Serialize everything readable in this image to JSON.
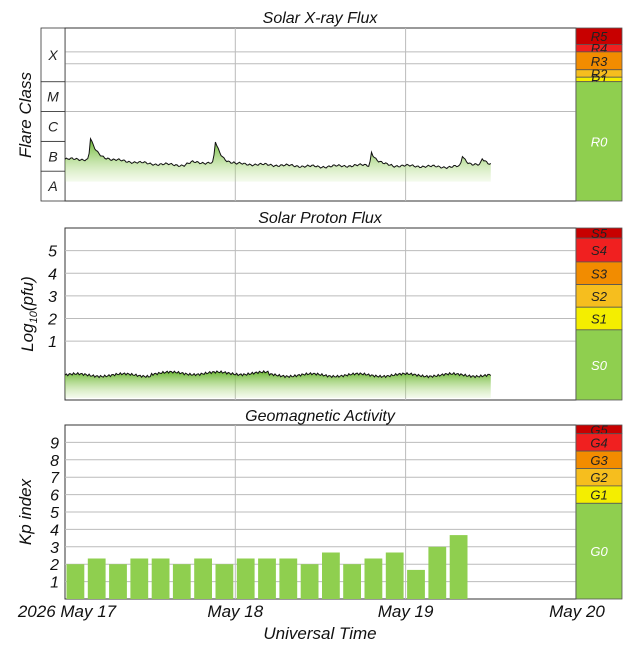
{
  "chart_data": [
    {
      "type": "area",
      "title": "Solar X-ray Flux",
      "ylabel": "Flare Class",
      "y_classes": [
        "A",
        "B",
        "C",
        "M",
        "X"
      ],
      "ylim": [
        -8,
        -2.2
      ],
      "scale_note": "log10 W/m^2",
      "x_days": [
        0,
        0.25,
        0.5,
        0.7,
        0.75,
        1.0,
        1.25,
        1.5,
        1.75,
        2.0,
        2.25,
        2.5
      ],
      "x_values": [
        -6.6,
        -6.6,
        -6.75,
        -6.8,
        -6.7,
        -6.75,
        -6.8,
        -6.85,
        -6.8,
        -6.82,
        -6.86,
        -6.8
      ],
      "spikes": [
        {
          "day": 0.15,
          "value": -5.9
        },
        {
          "day": 0.88,
          "value": -5.95
        },
        {
          "day": 1.8,
          "value": -6.35
        },
        {
          "day": 2.33,
          "value": -6.45
        },
        {
          "day": 2.45,
          "value": -6.6
        }
      ],
      "scale_labels": [
        "R5",
        "R4",
        "R3",
        "R2",
        "R1",
        "R0"
      ],
      "scale_colors": [
        "#c80000",
        "#f02020",
        "#f28c00",
        "#f6be1e",
        "#f4ee00",
        "#8fcf4f"
      ]
    },
    {
      "type": "area",
      "title": "Solar Proton Flux",
      "ylabel": "Log10(pfu)",
      "ylabel_main": "Log",
      "ylabel_sub": "10",
      "ylabel_rest": "(pfu)",
      "yticks": [
        "1",
        "2",
        "3",
        "4",
        "5"
      ],
      "ylim": [
        -1.6,
        6
      ],
      "level": -0.5,
      "scale_labels": [
        "S5",
        "S4",
        "S3",
        "S2",
        "S1",
        "S0"
      ],
      "scale_colors": [
        "#c80000",
        "#f02020",
        "#f28c00",
        "#f6be1e",
        "#f4ee00",
        "#8fcf4f"
      ]
    },
    {
      "type": "bar",
      "title": "Geomagnetic Activity",
      "ylabel": "Kp index",
      "yticks": [
        "1",
        "2",
        "3",
        "4",
        "5",
        "6",
        "7",
        "8",
        "9"
      ],
      "ylim": [
        0,
        10
      ],
      "values": [
        2.0,
        2.33,
        2.0,
        2.33,
        2.33,
        2.0,
        2.33,
        2.0,
        2.33,
        2.33,
        2.33,
        2.0,
        2.67,
        2.0,
        2.33,
        2.67,
        1.67,
        3.0,
        3.67
      ],
      "scale_labels": [
        "G5",
        "G4",
        "G3",
        "G2",
        "G1",
        "G0"
      ],
      "scale_colors": [
        "#c80000",
        "#f02020",
        "#f28c00",
        "#f6be1e",
        "#f4ee00",
        "#8fcf4f"
      ]
    }
  ],
  "x_axis": {
    "label": "Universal Time",
    "ticks": [
      "2026 May 17",
      "May 18",
      "May 19",
      "May 20"
    ]
  },
  "colors": {
    "bar": "#8fcf4f",
    "fill_top": "#66b82a",
    "grid": "#bbbbbb"
  }
}
